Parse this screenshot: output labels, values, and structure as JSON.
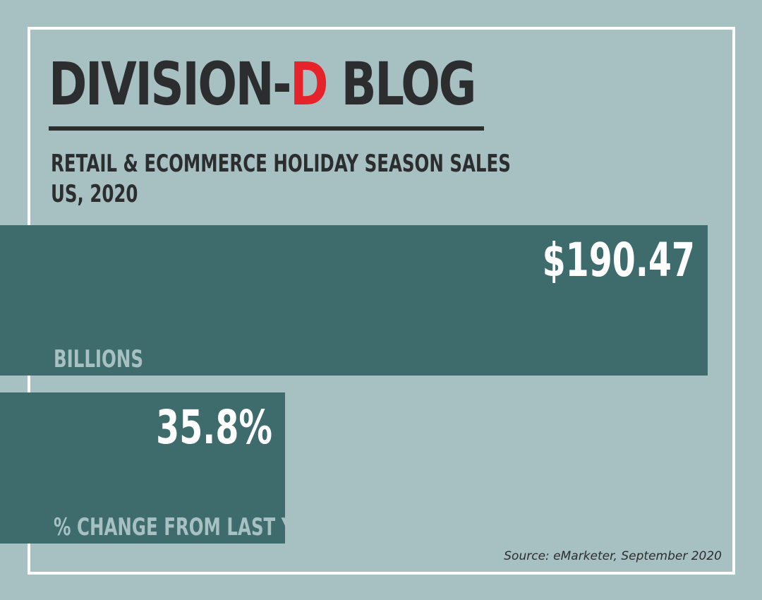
{
  "brand": {
    "prefix": "DIVISION-",
    "accent": "D",
    "suffix": " BLOG",
    "accent_color": "#e4232a",
    "text_color": "#2c2d2f"
  },
  "colors": {
    "background": "#a7c1c3",
    "frame": "#ffffff",
    "bar": "#3e6b6c",
    "bar_label": "#a7c1c3",
    "bar_value": "#ffffff"
  },
  "chart_data": {
    "type": "bar",
    "orientation": "horizontal",
    "title": "RETAIL & ECOMMERCE HOLIDAY SEASON SALES",
    "subtitle": "US, 2020",
    "source": "Source: eMarketer, September 2020",
    "bars": [
      {
        "value": 190.47,
        "value_label": "$190.47",
        "label": "BILLIONS"
      },
      {
        "value": 35.8,
        "value_label": "35.8%",
        "label": "% CHANGE FROM LAST YEAR"
      }
    ]
  }
}
